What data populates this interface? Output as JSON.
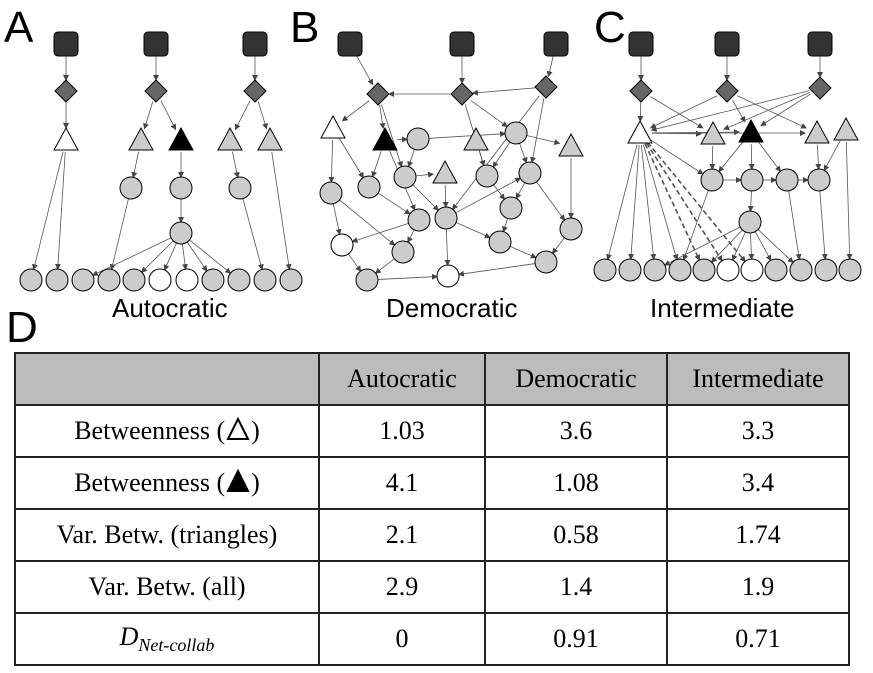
{
  "panels": {
    "a": {
      "letter": "A",
      "caption": "Autocratic"
    },
    "b": {
      "letter": "B",
      "caption": "Democratic"
    },
    "c": {
      "letter": "C",
      "caption": "Intermediate"
    },
    "d": {
      "letter": "D"
    }
  },
  "table": {
    "headers": [
      "",
      "Autocratic",
      "Democratic",
      "Intermediate"
    ],
    "rows": [
      {
        "label_prefix": "Betweenness (",
        "icon": "white-triangle-icon",
        "label_suffix": ")",
        "values": [
          "1.03",
          "3.6",
          "3.3"
        ]
      },
      {
        "label_prefix": "Betweenness (",
        "icon": "black-triangle-icon",
        "label_suffix": ")",
        "values": [
          "4.1",
          "1.08",
          "3.4"
        ]
      },
      {
        "label": "Var. Betw. (triangles)",
        "values": [
          "2.1",
          "0.58",
          "1.74"
        ]
      },
      {
        "label": "Var. Betw. (all)",
        "values": [
          "2.9",
          "1.4",
          "1.9"
        ]
      },
      {
        "label_main": "D",
        "label_sub": "Net-collab",
        "values": [
          "0",
          "0.91",
          "0.71"
        ]
      }
    ]
  },
  "colors": {
    "square": "#333333",
    "diamond": "#666666",
    "grey_node": "#cccccc",
    "white_node": "#ffffff",
    "black_node": "#000000",
    "header_bg": "#bcbcbc",
    "edge": "#555555"
  }
}
